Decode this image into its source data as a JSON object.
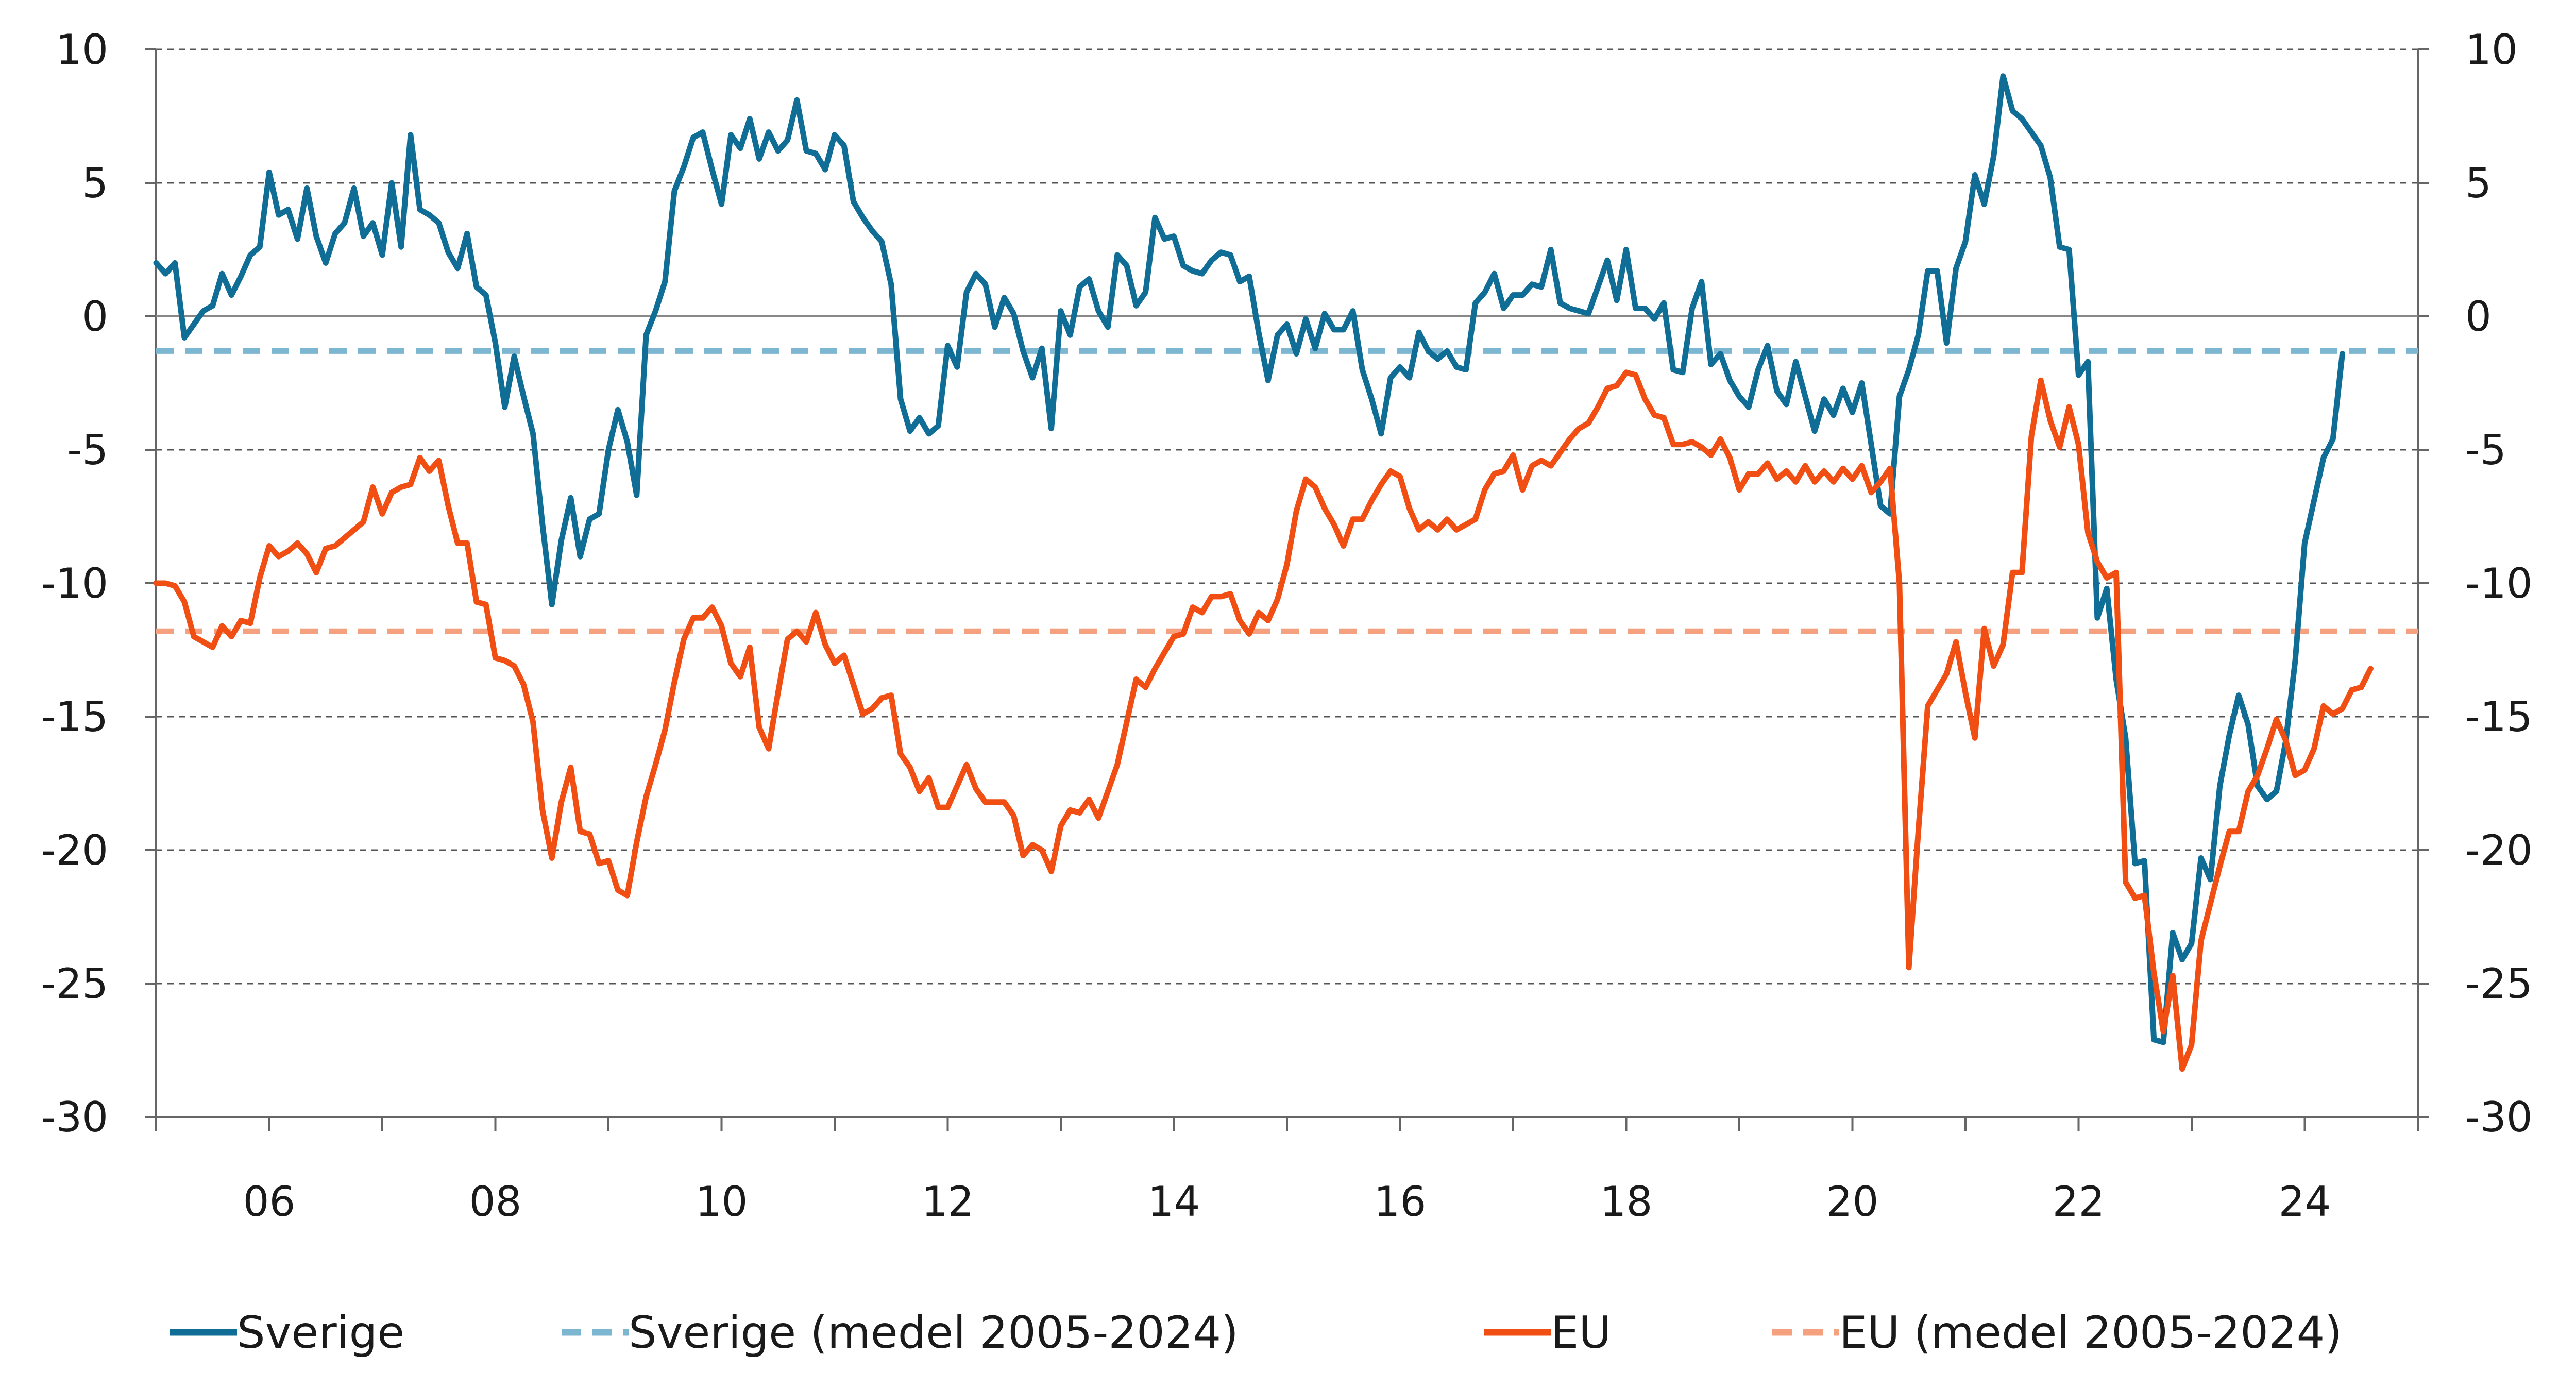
{
  "chart_data": {
    "type": "line",
    "title": "",
    "xlabel": "",
    "ylabel": "",
    "x_start": 2005.0,
    "x_step": 0.08333,
    "xlim": [
      2005.0,
      2025.0
    ],
    "ylim": [
      -30,
      10
    ],
    "yticks": [
      10,
      5,
      0,
      -5,
      -10,
      -15,
      -20,
      -25,
      -30
    ],
    "ytick_labels": [
      "10",
      "5",
      "0",
      "-5",
      "-10",
      "-15",
      "-20",
      "-25",
      "-30"
    ],
    "xticks": [
      2006,
      2008,
      2010,
      2012,
      2014,
      2016,
      2018,
      2020,
      2022,
      2024
    ],
    "xtick_labels": [
      "06",
      "08",
      "10",
      "12",
      "14",
      "16",
      "18",
      "20",
      "22",
      "24"
    ],
    "grid": "horizontal dashed",
    "legend_position": "bottom",
    "series": [
      {
        "name": "Sverige",
        "color": "#0f6d96",
        "style": "solid",
        "values": [
          2.0,
          1.6,
          2.0,
          -0.8,
          -0.3,
          0.2,
          0.4,
          1.6,
          0.8,
          1.5,
          2.3,
          2.6,
          5.4,
          3.8,
          4.0,
          2.9,
          4.8,
          3.0,
          2.0,
          3.1,
          3.5,
          4.8,
          3.0,
          3.5,
          2.3,
          5.0,
          2.6,
          6.8,
          4.0,
          3.8,
          3.5,
          2.4,
          1.8,
          3.1,
          1.1,
          0.8,
          -1.0,
          -3.4,
          -1.5,
          -3.0,
          -4.4,
          -7.8,
          -10.8,
          -8.4,
          -6.8,
          -9.0,
          -7.6,
          -7.4,
          -5.0,
          -3.5,
          -4.7,
          -6.7,
          -0.7,
          0.2,
          1.3,
          4.7,
          5.6,
          6.7,
          6.9,
          5.5,
          4.2,
          6.8,
          6.3,
          7.4,
          5.9,
          6.9,
          6.2,
          6.6,
          8.1,
          6.2,
          6.1,
          5.5,
          6.8,
          6.4,
          4.3,
          3.7,
          3.2,
          2.8,
          1.2,
          -3.1,
          -4.3,
          -3.8,
          -4.4,
          -4.1,
          -1.1,
          -1.9,
          0.9,
          1.6,
          1.2,
          -0.4,
          0.7,
          0.1,
          -1.3,
          -2.3,
          -1.2,
          -4.2,
          0.2,
          -0.7,
          1.1,
          1.4,
          0.2,
          -0.4,
          2.3,
          1.9,
          0.4,
          0.9,
          3.7,
          2.9,
          3.0,
          1.9,
          1.7,
          1.6,
          2.1,
          2.4,
          2.3,
          1.3,
          1.5,
          -0.6,
          -2.4,
          -0.7,
          -0.3,
          -1.4,
          -0.1,
          -1.2,
          0.1,
          -0.5,
          -0.5,
          0.2,
          -2.0,
          -3.1,
          -4.4,
          -2.3,
          -1.9,
          -2.3,
          -0.6,
          -1.3,
          -1.6,
          -1.3,
          -1.9,
          -2.0,
          0.5,
          0.9,
          1.6,
          0.3,
          0.8,
          0.8,
          1.2,
          1.1,
          2.5,
          0.5,
          0.3,
          0.2,
          0.1,
          1.1,
          2.1,
          0.6,
          2.5,
          0.3,
          0.3,
          -0.1,
          0.5,
          -2.0,
          -2.1,
          0.3,
          1.3,
          -1.8,
          -1.4,
          -2.4,
          -3.0,
          -3.4,
          -2.0,
          -1.1,
          -2.8,
          -3.3,
          -1.7,
          -3.0,
          -4.3,
          -3.1,
          -3.7,
          -2.7,
          -3.6,
          -2.5,
          -4.8,
          -7.1,
          -7.4,
          -3.0,
          -2.0,
          -0.7,
          1.7,
          1.7,
          -1.0,
          1.8,
          2.8,
          5.3,
          4.2,
          6.0,
          9.0,
          7.7,
          7.4,
          6.9,
          6.4,
          5.2,
          2.6,
          2.5,
          -2.2,
          -1.7,
          -11.3,
          -10.2,
          -13.6,
          -15.8,
          -20.5,
          -20.4,
          -27.1,
          -27.2,
          -23.1,
          -24.1,
          -23.5,
          -20.3,
          -21.1,
          -17.6,
          -15.7,
          -14.2,
          -15.3,
          -17.6,
          -18.1,
          -17.8,
          -15.9,
          -12.9,
          -8.5,
          -6.9,
          -5.3,
          -4.6,
          -1.4
        ]
      },
      {
        "name": "Sverige (medel 2005-2024)",
        "color": "#7db6d1",
        "style": "dashed",
        "constant": -1.3
      },
      {
        "name": "EU",
        "color": "#f04e12",
        "style": "solid",
        "values": [
          -10.0,
          -10.0,
          -10.1,
          -10.7,
          -12.0,
          -12.2,
          -12.4,
          -11.6,
          -12.0,
          -11.4,
          -11.5,
          -9.8,
          -8.6,
          -9.0,
          -8.8,
          -8.5,
          -8.9,
          -9.6,
          -8.7,
          -8.6,
          -8.3,
          -8.0,
          -7.7,
          -6.4,
          -7.4,
          -6.6,
          -6.4,
          -6.3,
          -5.3,
          -5.8,
          -5.4,
          -7.1,
          -8.5,
          -8.5,
          -10.7,
          -10.8,
          -12.8,
          -12.9,
          -13.1,
          -13.8,
          -15.2,
          -18.5,
          -20.3,
          -18.2,
          -16.9,
          -19.3,
          -19.4,
          -20.5,
          -20.4,
          -21.5,
          -21.7,
          -19.7,
          -18.0,
          -16.8,
          -15.5,
          -13.7,
          -12.1,
          -11.3,
          -11.3,
          -10.9,
          -11.6,
          -13.0,
          -13.5,
          -12.4,
          -15.4,
          -16.2,
          -14.1,
          -12.1,
          -11.8,
          -12.2,
          -11.1,
          -12.3,
          -13.0,
          -12.7,
          -13.8,
          -14.9,
          -14.7,
          -14.3,
          -14.2,
          -16.4,
          -16.9,
          -17.8,
          -17.3,
          -18.4,
          -18.4,
          -17.6,
          -16.8,
          -17.7,
          -18.2,
          -18.2,
          -18.2,
          -18.7,
          -20.2,
          -19.8,
          -20.0,
          -20.8,
          -19.1,
          -18.5,
          -18.6,
          -18.1,
          -18.8,
          -17.8,
          -16.8,
          -15.2,
          -13.6,
          -13.9,
          -13.2,
          -12.6,
          -12.0,
          -11.9,
          -10.9,
          -11.1,
          -10.5,
          -10.5,
          -10.4,
          -11.4,
          -11.9,
          -11.1,
          -11.4,
          -10.6,
          -9.3,
          -7.3,
          -6.1,
          -6.4,
          -7.2,
          -7.8,
          -8.6,
          -7.6,
          -7.6,
          -6.9,
          -6.3,
          -5.8,
          -6.0,
          -7.2,
          -8.0,
          -7.7,
          -8.0,
          -7.6,
          -8.0,
          -7.8,
          -7.6,
          -6.5,
          -5.9,
          -5.8,
          -5.2,
          -6.5,
          -5.6,
          -5.4,
          -5.6,
          -5.1,
          -4.6,
          -4.2,
          -4.0,
          -3.4,
          -2.7,
          -2.6,
          -2.1,
          -2.2,
          -3.1,
          -3.7,
          -3.8,
          -4.8,
          -4.8,
          -4.7,
          -4.9,
          -5.2,
          -4.6,
          -5.3,
          -6.5,
          -5.9,
          -5.9,
          -5.5,
          -6.1,
          -5.8,
          -6.2,
          -5.6,
          -6.2,
          -5.8,
          -6.2,
          -5.7,
          -6.1,
          -5.6,
          -6.6,
          -6.2,
          -5.7,
          -10.0,
          -24.4,
          -19.3,
          -14.6,
          -14.0,
          -13.4,
          -12.2,
          -14.1,
          -15.8,
          -11.7,
          -13.1,
          -12.3,
          -9.6,
          -9.6,
          -4.5,
          -2.4,
          -3.9,
          -4.9,
          -3.4,
          -4.8,
          -8.1,
          -9.2,
          -9.8,
          -9.6,
          -21.2,
          -21.8,
          -21.7,
          -24.6,
          -26.8,
          -24.7,
          -28.2,
          -27.3,
          -23.4,
          -22.0,
          -20.6,
          -19.3,
          -19.3,
          -17.8,
          -17.2,
          -16.2,
          -15.1,
          -15.9,
          -17.2,
          -17.0,
          -16.2,
          -14.6,
          -14.9,
          -14.7,
          -14.0,
          -13.9,
          -13.2
        ]
      },
      {
        "name": "EU (medel 2005-2024)",
        "color": "#f5a07e",
        "style": "dashed",
        "constant": -11.8
      }
    ]
  }
}
